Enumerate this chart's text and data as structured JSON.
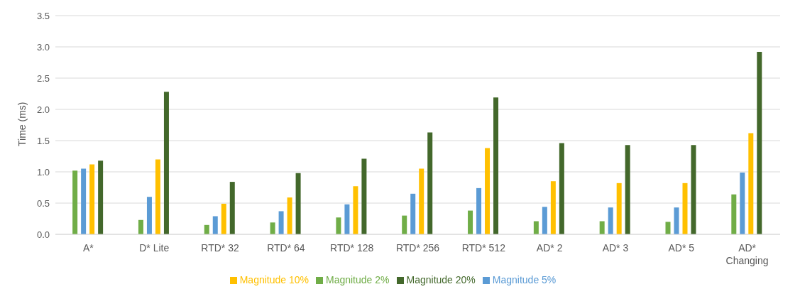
{
  "chart_data": {
    "type": "bar",
    "ylabel": "Time (ms)",
    "categories": [
      "A*",
      "D* Lite",
      "RTD* 32",
      "RTD* 64",
      "RTD* 128",
      "RTD* 256",
      "RTD* 512",
      "AD* 2",
      "AD* 3",
      "AD* 5",
      "AD* Changing"
    ],
    "series": [
      {
        "name": "Magnitude 2%",
        "color": "#70ad47",
        "values": [
          1.02,
          0.23,
          0.15,
          0.19,
          0.27,
          0.3,
          0.38,
          0.21,
          0.21,
          0.2,
          0.64
        ]
      },
      {
        "name": "Magnitude 5%",
        "color": "#5b9bd5",
        "values": [
          1.05,
          0.6,
          0.29,
          0.37,
          0.48,
          0.65,
          0.74,
          0.44,
          0.43,
          0.43,
          0.99
        ]
      },
      {
        "name": "Magnitude 10%",
        "color": "#ffc000",
        "values": [
          1.12,
          1.2,
          0.49,
          0.59,
          0.77,
          1.05,
          1.38,
          0.85,
          0.82,
          0.82,
          1.62
        ]
      },
      {
        "name": "Magnitude 20%",
        "color": "#43682b",
        "values": [
          1.18,
          2.28,
          0.84,
          0.98,
          1.21,
          1.63,
          2.19,
          1.46,
          1.43,
          1.43,
          2.92
        ]
      }
    ],
    "ylim": [
      0,
      3.5
    ],
    "yticks": [
      {
        "value": 0,
        "label": "0.0"
      },
      {
        "value": 0.5,
        "label": "0.5"
      },
      {
        "value": 1,
        "label": "1.0"
      },
      {
        "value": 1.5,
        "label": "1.5"
      },
      {
        "value": 2,
        "label": "2.0"
      },
      {
        "value": 2.5,
        "label": "2.5"
      },
      {
        "value": 3,
        "label": "3.0"
      },
      {
        "value": 3.5,
        "label": "3.5"
      }
    ],
    "grid": "y",
    "legend": "bottom"
  }
}
